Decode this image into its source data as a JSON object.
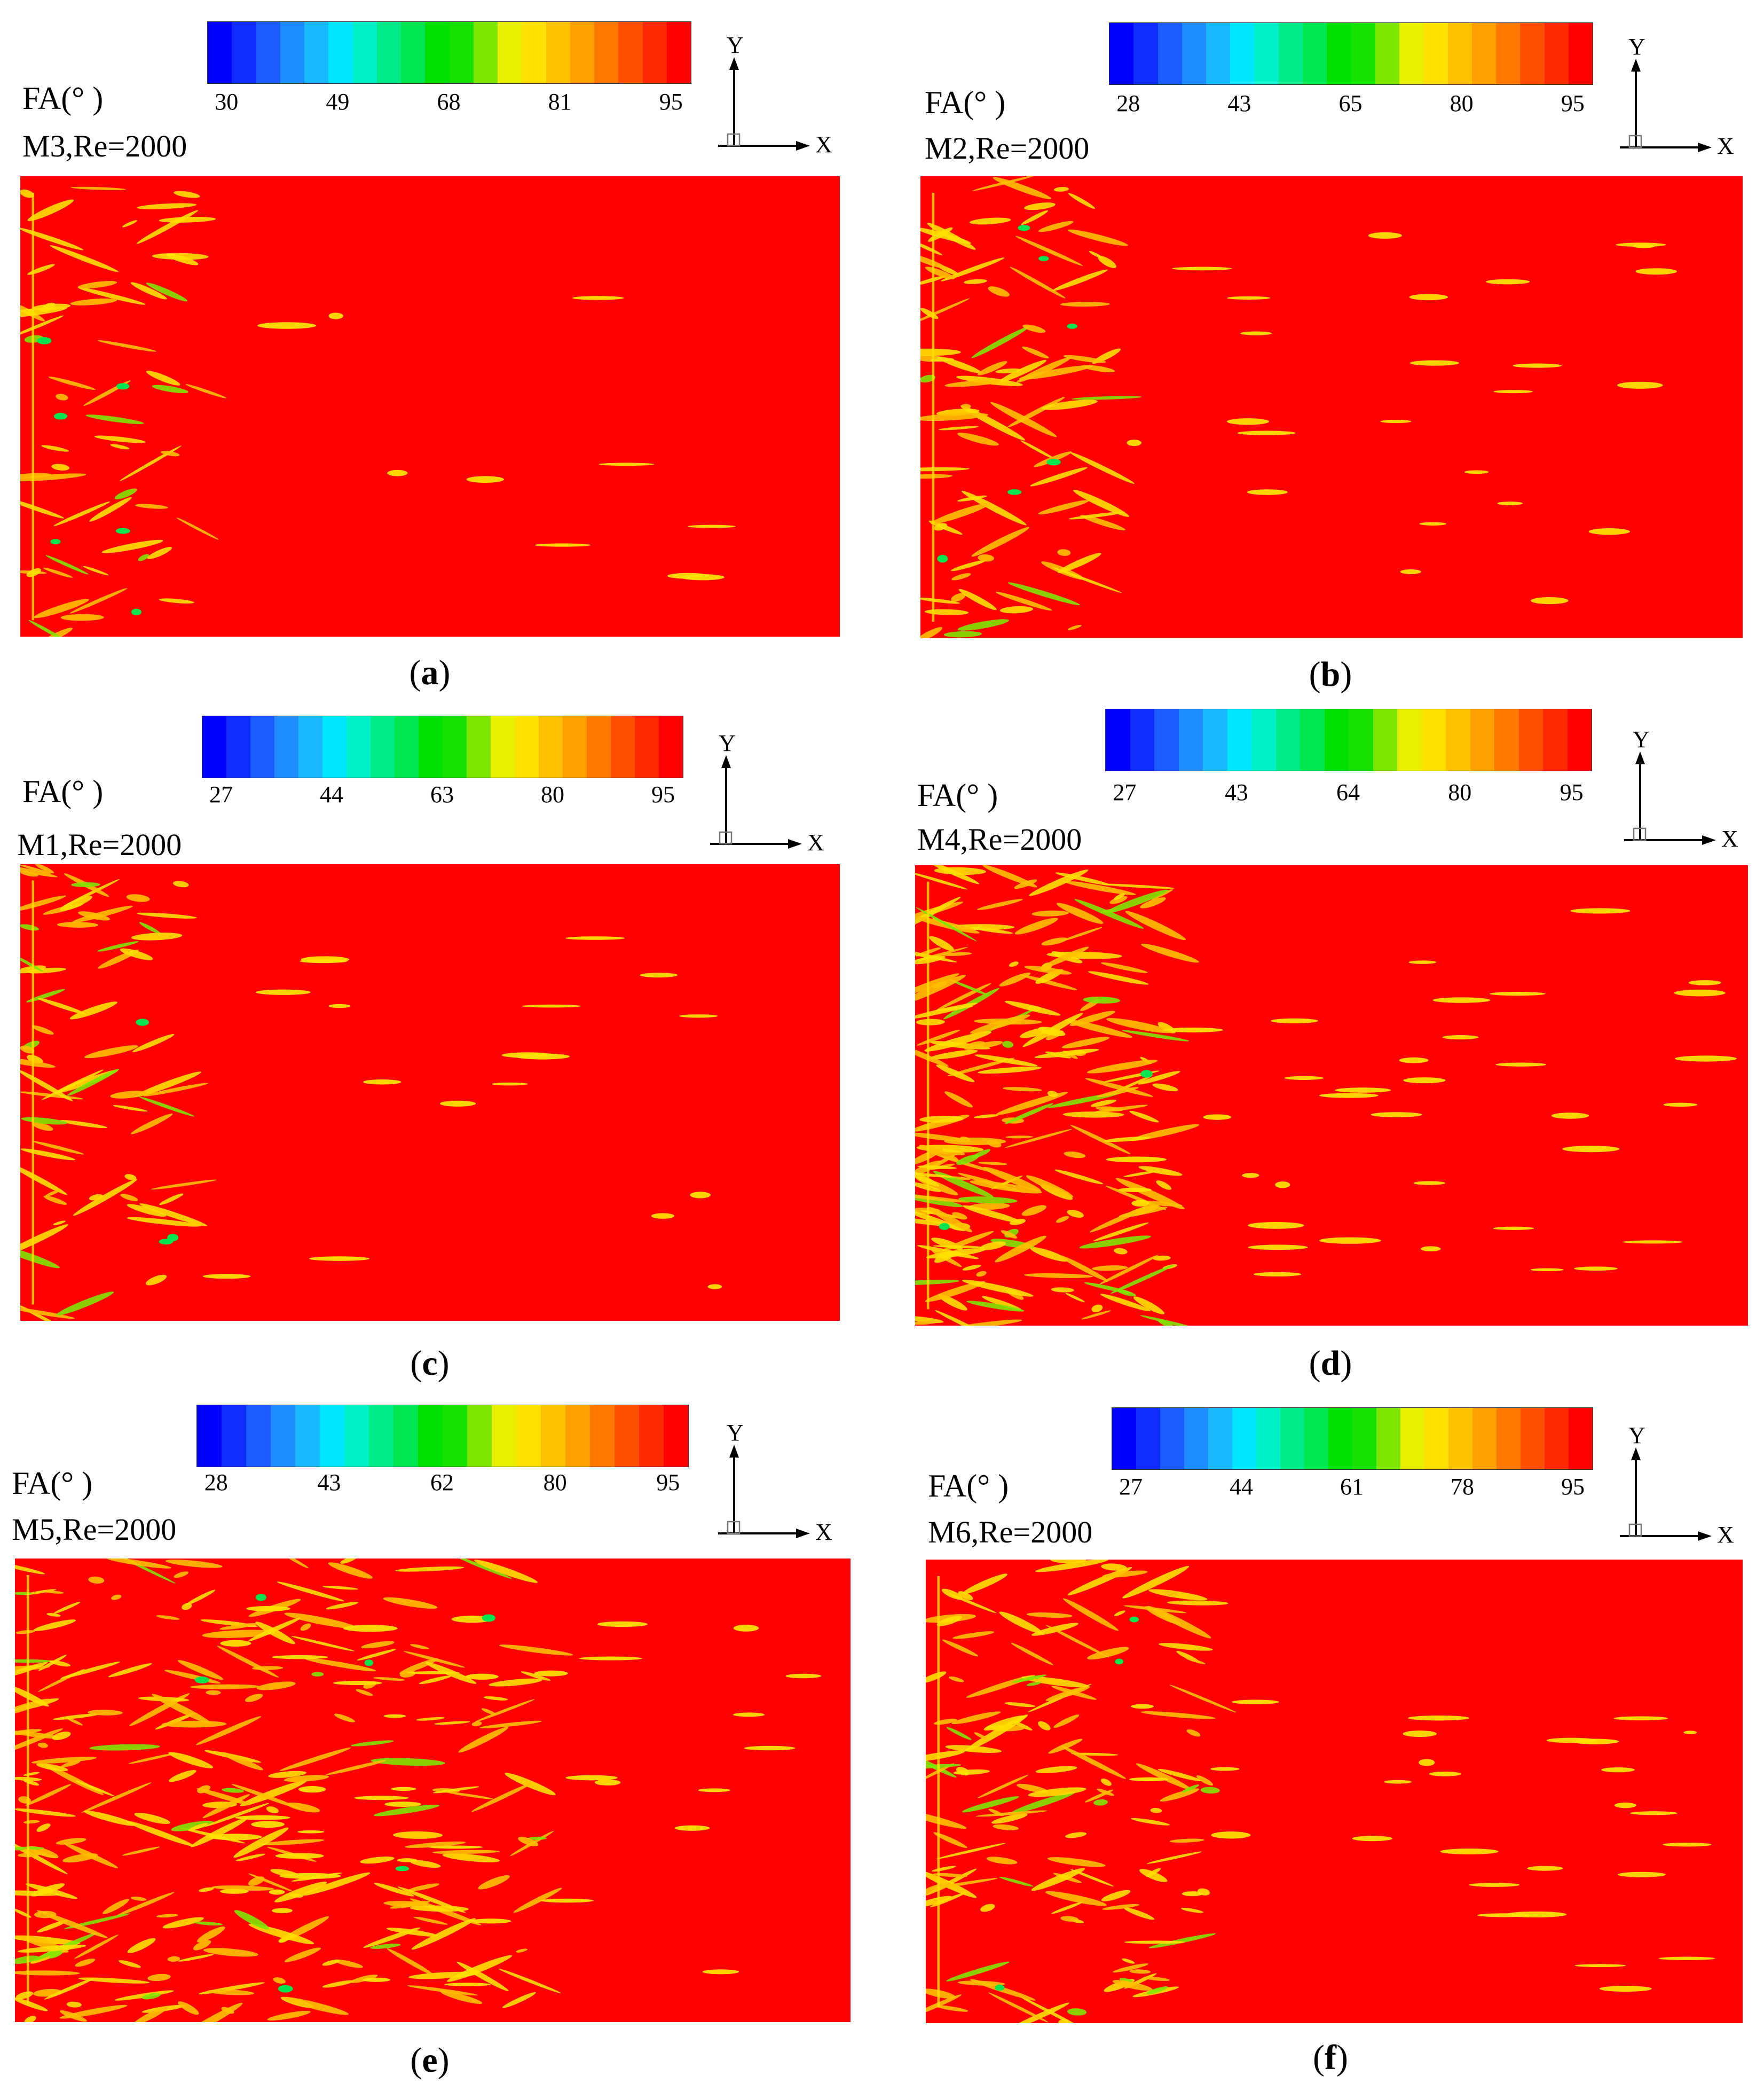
{
  "colorscale": [
    "#0000ff",
    "#0f2dff",
    "#1a5cff",
    "#1e8cff",
    "#19b8ff",
    "#00e6ff",
    "#00f0c8",
    "#00ea8a",
    "#00e650",
    "#00e000",
    "#18e000",
    "#7ee600",
    "#e6f000",
    "#ffe000",
    "#ffc000",
    "#ffa000",
    "#ff7800",
    "#ff5000",
    "#ff2800",
    "#ff0000"
  ],
  "field_color": "#ff0000",
  "axes": {
    "y_label": "Y",
    "x_label": "X"
  },
  "panels": [
    {
      "id": "a",
      "fa_label": "FA(°  )",
      "case_label": "M3,Re=2000",
      "ticks": [
        "30",
        "49",
        "68",
        "81",
        "95"
      ],
      "caption": {
        "open": "(",
        "letter": "a",
        "close": ")"
      }
    },
    {
      "id": "b",
      "fa_label": "FA(°  )",
      "case_label": "M2,Re=2000",
      "ticks": [
        "28",
        "43",
        "65",
        "80",
        "95"
      ],
      "caption": {
        "open": "(",
        "letter": "b",
        "close": ")"
      }
    },
    {
      "id": "c",
      "fa_label": "FA(°  )",
      "case_label": "M1,Re=2000",
      "ticks": [
        "27",
        "44",
        "63",
        "80",
        "95"
      ],
      "caption": {
        "open": "(",
        "letter": "c",
        "close": ")"
      }
    },
    {
      "id": "d",
      "fa_label": "FA(°  )",
      "case_label": "M4,Re=2000",
      "ticks": [
        "27",
        "43",
        "64",
        "80",
        "95"
      ],
      "caption": {
        "open": "(",
        "letter": "d",
        "close": ")"
      }
    },
    {
      "id": "e",
      "fa_label": "FA(°  )",
      "case_label": "M5,Re=2000",
      "ticks": [
        "28",
        "43",
        "62",
        "80",
        "95"
      ],
      "caption": {
        "open": "(",
        "letter": "e",
        "close": ")"
      }
    },
    {
      "id": "f",
      "fa_label": "FA(°  )",
      "case_label": "M6,Re=2000",
      "ticks": [
        "27",
        "44",
        "61",
        "78",
        "95"
      ],
      "caption": {
        "open": "(",
        "letter": "f",
        "close": ")"
      }
    }
  ]
}
